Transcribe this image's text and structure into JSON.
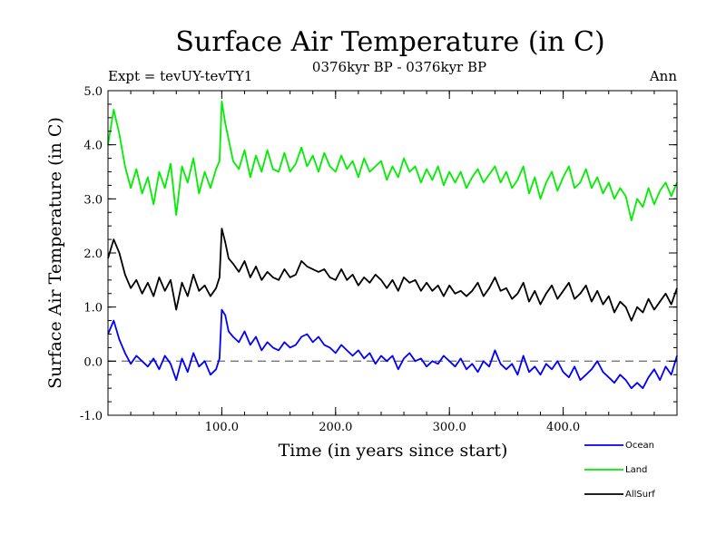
{
  "chart_data": {
    "type": "line",
    "title": "Surface Air Temperature (in C)",
    "subtitle_left": "Expt = tevUY-tevTY1",
    "subtitle_center": "0376kyr BP - 0376kyr BP",
    "subtitle_right": "Ann",
    "xlabel": "Time (in years since start)",
    "ylabel": "Surface Air Temperature (in C)",
    "xlim": [
      0,
      500
    ],
    "ylim": [
      -1.0,
      5.0
    ],
    "xticks": [
      100,
      200,
      300,
      400
    ],
    "xtick_labels": [
      "100.0",
      "200.0",
      "300.0",
      "400.0"
    ],
    "yticks": [
      -1.0,
      0.0,
      1.0,
      2.0,
      3.0,
      4.0,
      5.0
    ],
    "ytick_labels": [
      "-1.0",
      "0.0",
      "1.0",
      "2.0",
      "3.0",
      "4.0",
      "5.0"
    ],
    "reference_line": {
      "y": 0.0,
      "style": "dashed"
    },
    "legend_position": "bottom-right, outside plot",
    "series": [
      {
        "name": "Ocean",
        "color": "#0000ff",
        "x": [
          0,
          5,
          10,
          15,
          20,
          25,
          30,
          35,
          40,
          45,
          50,
          55,
          60,
          65,
          70,
          75,
          80,
          85,
          90,
          95,
          98,
          100,
          103,
          106,
          110,
          115,
          120,
          125,
          130,
          135,
          140,
          145,
          150,
          155,
          160,
          165,
          170,
          175,
          180,
          185,
          190,
          195,
          200,
          205,
          210,
          215,
          220,
          225,
          230,
          235,
          240,
          245,
          250,
          255,
          260,
          265,
          270,
          275,
          280,
          285,
          290,
          295,
          300,
          305,
          310,
          315,
          320,
          325,
          330,
          335,
          340,
          345,
          350,
          355,
          360,
          365,
          370,
          375,
          380,
          385,
          390,
          395,
          400,
          405,
          410,
          415,
          420,
          425,
          430,
          435,
          440,
          445,
          450,
          455,
          460,
          465,
          470,
          475,
          480,
          485,
          490,
          495,
          500
        ],
        "y": [
          0.5,
          0.75,
          0.4,
          0.15,
          -0.05,
          0.1,
          0.0,
          -0.1,
          0.05,
          -0.15,
          0.1,
          -0.05,
          -0.35,
          0.05,
          -0.2,
          0.15,
          -0.1,
          0.0,
          -0.25,
          -0.15,
          0.05,
          0.95,
          0.85,
          0.55,
          0.45,
          0.35,
          0.55,
          0.3,
          0.45,
          0.2,
          0.35,
          0.25,
          0.2,
          0.35,
          0.25,
          0.3,
          0.45,
          0.5,
          0.35,
          0.45,
          0.3,
          0.25,
          0.15,
          0.3,
          0.2,
          0.1,
          0.2,
          0.05,
          0.15,
          -0.05,
          0.1,
          0.0,
          0.1,
          -0.15,
          0.05,
          0.15,
          0.0,
          0.05,
          -0.1,
          0.0,
          -0.05,
          0.1,
          0.0,
          -0.1,
          0.05,
          -0.15,
          -0.05,
          -0.2,
          0.0,
          -0.1,
          0.2,
          -0.05,
          -0.15,
          -0.05,
          -0.25,
          0.1,
          -0.2,
          -0.1,
          -0.25,
          -0.05,
          -0.15,
          0.0,
          -0.2,
          -0.3,
          -0.1,
          -0.35,
          -0.25,
          -0.15,
          0.0,
          -0.2,
          -0.3,
          -0.4,
          -0.25,
          -0.35,
          -0.5,
          -0.4,
          -0.5,
          -0.3,
          -0.15,
          -0.35,
          -0.1,
          -0.25,
          0.1
        ]
      },
      {
        "name": "Land",
        "color": "#00ee00",
        "x": [
          0,
          5,
          10,
          15,
          20,
          25,
          30,
          35,
          40,
          45,
          50,
          55,
          60,
          65,
          70,
          75,
          80,
          85,
          90,
          95,
          98,
          100,
          103,
          106,
          110,
          115,
          120,
          125,
          130,
          135,
          140,
          145,
          150,
          155,
          160,
          165,
          170,
          175,
          180,
          185,
          190,
          195,
          200,
          205,
          210,
          215,
          220,
          225,
          230,
          235,
          240,
          245,
          250,
          255,
          260,
          265,
          270,
          275,
          280,
          285,
          290,
          295,
          300,
          305,
          310,
          315,
          320,
          325,
          330,
          335,
          340,
          345,
          350,
          355,
          360,
          365,
          370,
          375,
          380,
          385,
          390,
          395,
          400,
          405,
          410,
          415,
          420,
          425,
          430,
          435,
          440,
          445,
          450,
          455,
          460,
          465,
          470,
          475,
          480,
          485,
          490,
          495,
          500
        ],
        "y": [
          4.0,
          4.65,
          4.2,
          3.6,
          3.2,
          3.55,
          3.1,
          3.4,
          2.9,
          3.5,
          3.2,
          3.65,
          2.7,
          3.6,
          3.3,
          3.75,
          3.1,
          3.5,
          3.2,
          3.55,
          3.7,
          4.8,
          4.4,
          4.1,
          3.7,
          3.55,
          3.9,
          3.4,
          3.8,
          3.5,
          3.9,
          3.55,
          3.5,
          3.85,
          3.5,
          3.65,
          3.95,
          3.6,
          3.8,
          3.5,
          3.85,
          3.6,
          3.5,
          3.8,
          3.55,
          3.7,
          3.4,
          3.75,
          3.5,
          3.6,
          3.7,
          3.35,
          3.6,
          3.4,
          3.75,
          3.5,
          3.6,
          3.3,
          3.55,
          3.35,
          3.6,
          3.25,
          3.5,
          3.3,
          3.5,
          3.2,
          3.4,
          3.55,
          3.3,
          3.45,
          3.6,
          3.3,
          3.5,
          3.2,
          3.35,
          3.6,
          3.1,
          3.4,
          3.0,
          3.3,
          3.5,
          3.15,
          3.4,
          3.6,
          3.2,
          3.3,
          3.55,
          3.2,
          3.4,
          3.1,
          3.3,
          3.0,
          3.2,
          3.05,
          2.6,
          3.0,
          2.85,
          3.2,
          2.9,
          3.15,
          3.3,
          3.05,
          3.3
        ]
      },
      {
        "name": "AllSurf",
        "color": "#000000",
        "x": [
          0,
          5,
          10,
          15,
          20,
          25,
          30,
          35,
          40,
          45,
          50,
          55,
          60,
          65,
          70,
          75,
          80,
          85,
          90,
          95,
          98,
          100,
          103,
          106,
          110,
          115,
          120,
          125,
          130,
          135,
          140,
          145,
          150,
          155,
          160,
          165,
          170,
          175,
          180,
          185,
          190,
          195,
          200,
          205,
          210,
          215,
          220,
          225,
          230,
          235,
          240,
          245,
          250,
          255,
          260,
          265,
          270,
          275,
          280,
          285,
          290,
          295,
          300,
          305,
          310,
          315,
          320,
          325,
          330,
          335,
          340,
          345,
          350,
          355,
          360,
          365,
          370,
          375,
          380,
          385,
          390,
          395,
          400,
          405,
          410,
          415,
          420,
          425,
          430,
          435,
          440,
          445,
          450,
          455,
          460,
          465,
          470,
          475,
          480,
          485,
          490,
          495,
          500
        ],
        "y": [
          1.9,
          2.25,
          2.0,
          1.6,
          1.35,
          1.5,
          1.25,
          1.45,
          1.2,
          1.55,
          1.3,
          1.5,
          0.95,
          1.45,
          1.2,
          1.6,
          1.3,
          1.4,
          1.2,
          1.35,
          1.55,
          2.45,
          2.2,
          1.9,
          1.8,
          1.65,
          1.85,
          1.55,
          1.75,
          1.5,
          1.65,
          1.55,
          1.5,
          1.7,
          1.55,
          1.6,
          1.85,
          1.75,
          1.7,
          1.65,
          1.7,
          1.55,
          1.5,
          1.7,
          1.5,
          1.6,
          1.4,
          1.55,
          1.45,
          1.6,
          1.5,
          1.35,
          1.5,
          1.3,
          1.55,
          1.45,
          1.5,
          1.3,
          1.45,
          1.3,
          1.4,
          1.2,
          1.4,
          1.25,
          1.3,
          1.2,
          1.3,
          1.45,
          1.2,
          1.35,
          1.55,
          1.3,
          1.35,
          1.15,
          1.25,
          1.45,
          1.1,
          1.3,
          1.05,
          1.25,
          1.4,
          1.15,
          1.3,
          1.45,
          1.15,
          1.25,
          1.4,
          1.1,
          1.3,
          1.05,
          1.2,
          0.9,
          1.1,
          1.0,
          0.75,
          1.0,
          0.9,
          1.15,
          0.95,
          1.1,
          1.25,
          1.05,
          1.35
        ]
      }
    ]
  }
}
